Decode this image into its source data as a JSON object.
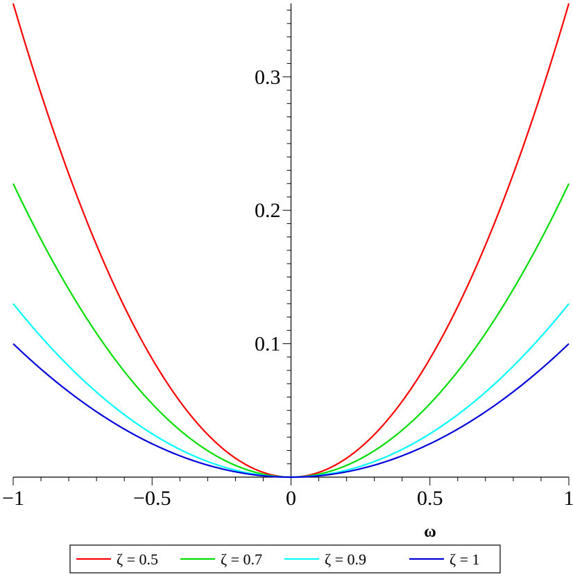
{
  "chart_data": {
    "type": "line",
    "title": "",
    "xlabel": "ω",
    "ylabel": "",
    "xlim": [
      -1,
      1
    ],
    "ylim": [
      0,
      0.355
    ],
    "grid": false,
    "legend_position": "bottom",
    "x_ticks": [
      {
        "value": -1,
        "label": "−1"
      },
      {
        "value": -0.5,
        "label": "−0.5"
      },
      {
        "value": 0,
        "label": "0"
      },
      {
        "value": 0.5,
        "label": "0.5"
      },
      {
        "value": 1,
        "label": "1"
      }
    ],
    "y_ticks": [
      {
        "value": 0.1,
        "label": "0.1"
      },
      {
        "value": 0.2,
        "label": "0.2"
      },
      {
        "value": 0.3,
        "label": "0.3"
      }
    ],
    "series": [
      {
        "name": "ζ = 0.5",
        "color": "#ff0000",
        "x": [
          -1,
          -0.75,
          -0.5,
          -0.25,
          0,
          0.25,
          0.5,
          0.75,
          1
        ],
        "y": [
          0.355,
          0.2,
          0.089,
          0.022,
          0,
          0.022,
          0.089,
          0.2,
          0.355
        ]
      },
      {
        "name": "ζ = 0.7",
        "color": "#00dd00",
        "x": [
          -1,
          -0.75,
          -0.5,
          -0.25,
          0,
          0.25,
          0.5,
          0.75,
          1
        ],
        "y": [
          0.22,
          0.124,
          0.055,
          0.014,
          0,
          0.014,
          0.055,
          0.124,
          0.22
        ]
      },
      {
        "name": "ζ = 0.9",
        "color": "#00ffff",
        "x": [
          -1,
          -0.75,
          -0.5,
          -0.25,
          0,
          0.25,
          0.5,
          0.75,
          1
        ],
        "y": [
          0.13,
          0.073,
          0.033,
          0.008,
          0,
          0.008,
          0.033,
          0.073,
          0.13
        ]
      },
      {
        "name": "ζ = 1",
        "color": "#0000dd",
        "x": [
          -1,
          -0.75,
          -0.5,
          -0.25,
          0,
          0.25,
          0.5,
          0.75,
          1
        ],
        "y": [
          0.1,
          0.056,
          0.025,
          0.006,
          0,
          0.006,
          0.025,
          0.056,
          0.1
        ]
      }
    ]
  }
}
